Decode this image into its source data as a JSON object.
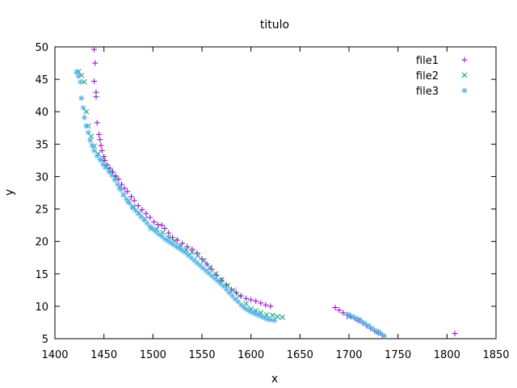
{
  "chart_data": {
    "type": "scatter",
    "title": "titulo",
    "xlabel": "x",
    "ylabel": "y",
    "xlim": [
      1400,
      1850
    ],
    "ylim": [
      5,
      50
    ],
    "x_ticks": [
      1400,
      1450,
      1500,
      1550,
      1600,
      1650,
      1700,
      1750,
      1800,
      1850
    ],
    "y_ticks": [
      5,
      10,
      15,
      20,
      25,
      30,
      35,
      40,
      45,
      50
    ],
    "grid": false,
    "legend_position": "top-right",
    "series": [
      {
        "name": "file1",
        "marker": "plus",
        "color": "#9400d3",
        "points": [
          [
            1440,
            49.6
          ],
          [
            1441,
            47.5
          ],
          [
            1440,
            44.7
          ],
          [
            1442,
            43
          ],
          [
            1442,
            42.3
          ],
          [
            1443,
            38.3
          ],
          [
            1445,
            36.5
          ],
          [
            1446,
            35.7
          ],
          [
            1447,
            34.8
          ],
          [
            1448,
            34
          ],
          [
            1450,
            33.1
          ],
          [
            1451,
            32.5
          ],
          [
            1453,
            31.8
          ],
          [
            1456,
            31.3
          ],
          [
            1459,
            30.7
          ],
          [
            1462,
            30.1
          ],
          [
            1465,
            29.6
          ],
          [
            1468,
            28.8
          ],
          [
            1471,
            28.2
          ],
          [
            1474,
            27.7
          ],
          [
            1478,
            26.9
          ],
          [
            1481,
            26.3
          ],
          [
            1485,
            25.5
          ],
          [
            1489,
            24.9
          ],
          [
            1493,
            24.3
          ],
          [
            1497,
            23.7
          ],
          [
            1501,
            23.0
          ],
          [
            1505,
            22.6
          ],
          [
            1509,
            22.5
          ],
          [
            1512,
            22.0
          ],
          [
            1516,
            21.3
          ],
          [
            1520,
            20.6
          ],
          [
            1525,
            20.2
          ],
          [
            1530,
            19.7
          ],
          [
            1535,
            19.2
          ],
          [
            1540,
            18.8
          ],
          [
            1545,
            18.2
          ],
          [
            1550,
            17.3
          ],
          [
            1555,
            16.5
          ],
          [
            1560,
            15.7
          ],
          [
            1565,
            14.8
          ],
          [
            1570,
            14.0
          ],
          [
            1575,
            13.3
          ],
          [
            1580,
            12.6
          ],
          [
            1585,
            12.1
          ],
          [
            1590,
            11.6
          ],
          [
            1595,
            11.2
          ],
          [
            1600,
            11.0
          ],
          [
            1605,
            10.8
          ],
          [
            1610,
            10.5
          ],
          [
            1615,
            10.2
          ],
          [
            1620,
            10.0
          ],
          [
            1686,
            9.8
          ],
          [
            1690,
            9.4
          ],
          [
            1694,
            9.0
          ],
          [
            1698,
            8.7
          ],
          [
            1702,
            8.4
          ],
          [
            1706,
            8.1
          ],
          [
            1710,
            7.8
          ],
          [
            1714,
            7.4
          ],
          [
            1718,
            7.0
          ],
          [
            1722,
            6.6
          ],
          [
            1726,
            6.2
          ],
          [
            1730,
            5.9
          ],
          [
            1734,
            5.6
          ],
          [
            1808,
            5.8
          ]
        ]
      },
      {
        "name": "file2",
        "marker": "cross",
        "color": "#009e73",
        "points": [
          [
            1424,
            46.2
          ],
          [
            1427,
            45.6
          ],
          [
            1430,
            44.6
          ],
          [
            1432,
            40.0
          ],
          [
            1434,
            37.8
          ],
          [
            1437,
            36.2
          ],
          [
            1440,
            34.7
          ],
          [
            1444,
            33.5
          ],
          [
            1448,
            32.6
          ],
          [
            1452,
            31.6
          ],
          [
            1457,
            30.8
          ],
          [
            1462,
            29.8
          ],
          [
            1466,
            28.4
          ],
          [
            1470,
            27.2
          ],
          [
            1475,
            26.2
          ],
          [
            1480,
            25.3
          ],
          [
            1486,
            24.4
          ],
          [
            1492,
            23.5
          ],
          [
            1498,
            22.0
          ],
          [
            1504,
            21.9
          ],
          [
            1510,
            21.4
          ],
          [
            1516,
            20.6
          ],
          [
            1522,
            20.1
          ],
          [
            1528,
            19.3
          ],
          [
            1534,
            18.7
          ],
          [
            1540,
            18.3
          ],
          [
            1546,
            17.8
          ],
          [
            1552,
            17.0
          ],
          [
            1558,
            16.0
          ],
          [
            1564,
            15.0
          ],
          [
            1570,
            14.1
          ],
          [
            1576,
            13.2
          ],
          [
            1582,
            12.5
          ],
          [
            1588,
            11.6
          ],
          [
            1595,
            10.4
          ],
          [
            1600,
            9.6
          ],
          [
            1605,
            9.3
          ],
          [
            1610,
            9.0
          ],
          [
            1616,
            8.7
          ],
          [
            1622,
            8.6
          ],
          [
            1627,
            8.4
          ],
          [
            1632,
            8.3
          ],
          [
            1700,
            8.4
          ],
          [
            1710,
            7.9
          ],
          [
            1720,
            7.0
          ],
          [
            1730,
            6.0
          ]
        ]
      },
      {
        "name": "file3",
        "marker": "star",
        "color": "#56b4e9",
        "points": [
          [
            1422,
            46.1
          ],
          [
            1424,
            45.5
          ],
          [
            1426,
            44.6
          ],
          [
            1427,
            42.1
          ],
          [
            1429,
            40.6
          ],
          [
            1430,
            39.1
          ],
          [
            1432,
            37.8
          ],
          [
            1434,
            36.8
          ],
          [
            1436,
            35.6
          ],
          [
            1438,
            34.8
          ],
          [
            1440,
            34.0
          ],
          [
            1443,
            33.2
          ],
          [
            1446,
            32.6
          ],
          [
            1449,
            31.9
          ],
          [
            1452,
            31.4
          ],
          [
            1455,
            30.8
          ],
          [
            1458,
            30.2
          ],
          [
            1461,
            29.5
          ],
          [
            1464,
            28.8
          ],
          [
            1467,
            28.0
          ],
          [
            1470,
            27.2
          ],
          [
            1473,
            26.5
          ],
          [
            1476,
            25.9
          ],
          [
            1479,
            25.3
          ],
          [
            1482,
            24.8
          ],
          [
            1485,
            24.3
          ],
          [
            1488,
            23.8
          ],
          [
            1491,
            23.3
          ],
          [
            1494,
            22.8
          ],
          [
            1497,
            22.3
          ],
          [
            1500,
            21.9
          ],
          [
            1503,
            21.5
          ],
          [
            1506,
            21.1
          ],
          [
            1509,
            20.8
          ],
          [
            1512,
            20.4
          ],
          [
            1515,
            20.1
          ],
          [
            1518,
            19.8
          ],
          [
            1521,
            19.5
          ],
          [
            1524,
            19.2
          ],
          [
            1527,
            18.9
          ],
          [
            1530,
            18.6
          ],
          [
            1533,
            18.3
          ],
          [
            1536,
            17.9
          ],
          [
            1539,
            17.5
          ],
          [
            1542,
            17.1
          ],
          [
            1545,
            16.7
          ],
          [
            1548,
            16.3
          ],
          [
            1551,
            15.9
          ],
          [
            1554,
            15.5
          ],
          [
            1557,
            15.1
          ],
          [
            1560,
            14.7
          ],
          [
            1563,
            14.3
          ],
          [
            1566,
            13.9
          ],
          [
            1569,
            13.5
          ],
          [
            1572,
            13.1
          ],
          [
            1575,
            12.6
          ],
          [
            1578,
            12.1
          ],
          [
            1581,
            11.6
          ],
          [
            1584,
            11.1
          ],
          [
            1587,
            10.7
          ],
          [
            1590,
            10.2
          ],
          [
            1593,
            9.8
          ],
          [
            1596,
            9.5
          ],
          [
            1599,
            9.2
          ],
          [
            1602,
            9.0
          ],
          [
            1605,
            8.8
          ],
          [
            1608,
            8.6
          ],
          [
            1611,
            8.4
          ],
          [
            1614,
            8.2
          ],
          [
            1617,
            8.0
          ],
          [
            1620,
            7.9
          ],
          [
            1624,
            7.8
          ],
          [
            1700,
            8.7
          ],
          [
            1704,
            8.4
          ],
          [
            1708,
            8.1
          ],
          [
            1712,
            7.8
          ],
          [
            1716,
            7.4
          ],
          [
            1720,
            7.0
          ],
          [
            1724,
            6.6
          ],
          [
            1728,
            6.2
          ],
          [
            1732,
            5.8
          ],
          [
            1736,
            5.4
          ]
        ]
      }
    ]
  }
}
